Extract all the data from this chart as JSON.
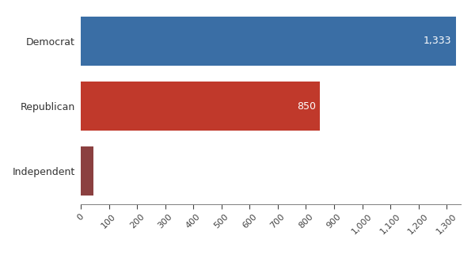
{
  "categories": [
    "Independent",
    "Republican",
    "Democrat"
  ],
  "values": [
    45,
    850,
    1333
  ],
  "bar_colors": [
    "#8B4040",
    "#C0392B",
    "#3A6EA5"
  ],
  "xlim": [
    0,
    1350
  ],
  "xtick_values": [
    0,
    100,
    200,
    300,
    400,
    500,
    600,
    700,
    800,
    900,
    1000,
    1100,
    1200,
    1300
  ],
  "background_color": "#ffffff",
  "bar_height": 0.75,
  "label_fontsize": 9,
  "tick_fontsize": 8,
  "ytick_fontsize": 9
}
